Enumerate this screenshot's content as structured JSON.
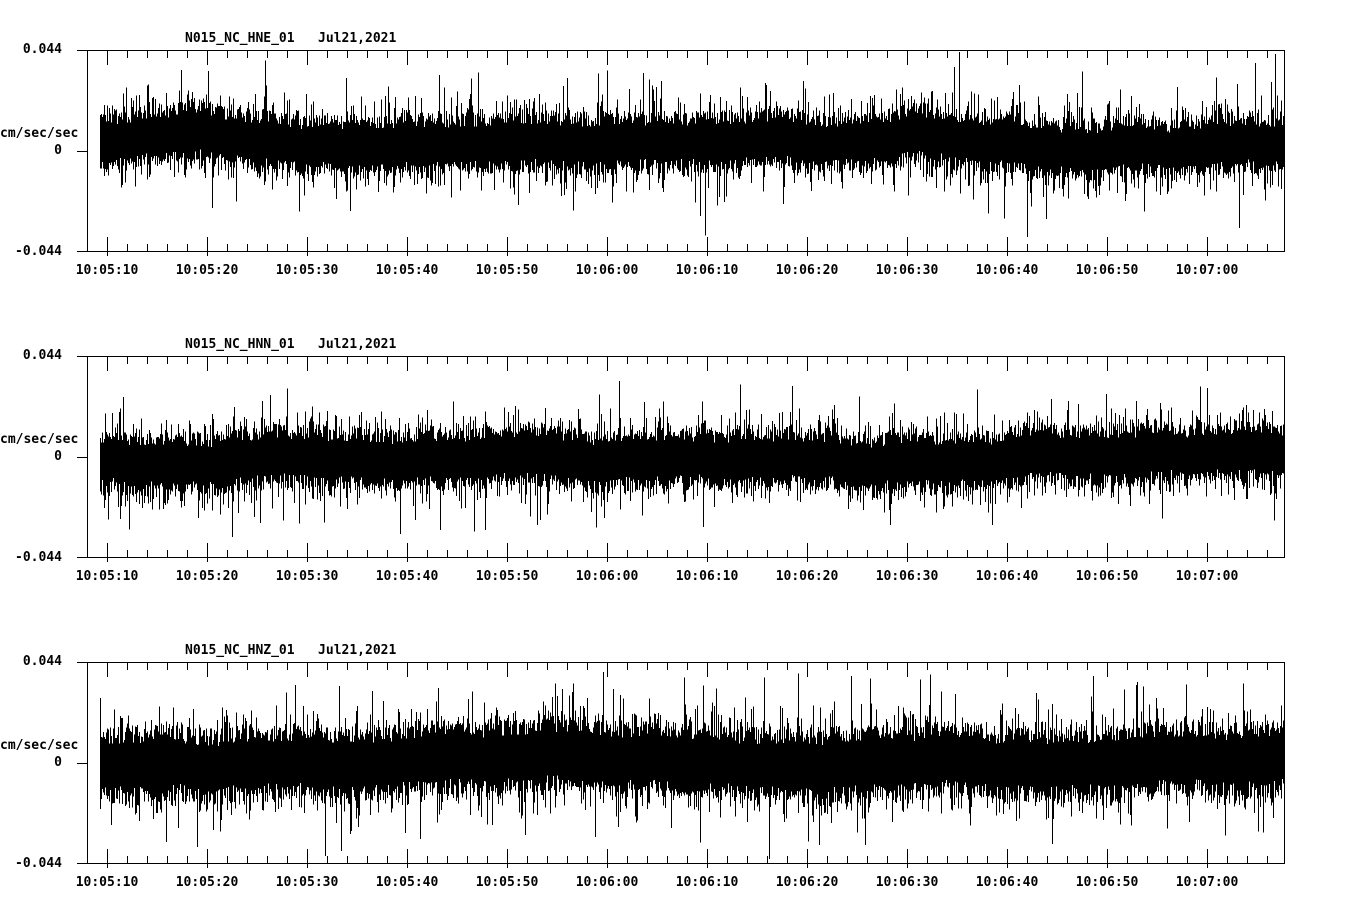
{
  "page": {
    "background_color": "#ffffff",
    "ink_color": "#000000",
    "description": "Three-component strong-motion seismogram display"
  },
  "chart_data": [
    {
      "type": "line",
      "title": "N015_NC_HNE_01   Jul21,2021",
      "station": "N015_NC_HNE_01",
      "date_label": "Jul21,2021",
      "y_axis": {
        "units": "cm/sec/sec",
        "max_label": "0.044",
        "zero_label": "0",
        "min_label": "-0.044",
        "ylim": [
          -0.044,
          0.044
        ],
        "grid": false
      },
      "x_axis": {
        "tick_labels": [
          "10:05:10",
          "10:05:20",
          "10:05:30",
          "10:05:40",
          "10:05:50",
          "10:06:00",
          "10:06:10",
          "10:06:20",
          "10:06:30",
          "10:06:40",
          "10:06:50",
          "10:07:00"
        ],
        "major_tick_seconds": 10,
        "minor_tick_seconds": 2
      },
      "waveform": {
        "description": "stationary broadband acceleration noise spanning full record, peaks near +/-0.040",
        "seed": 11,
        "core_amp": 0.0105,
        "med_spike_amp": 0.01,
        "big_spike_amp": 0.02,
        "bias": 0.004
      }
    },
    {
      "type": "line",
      "title": "N015_NC_HNN_01   Jul21,2021",
      "station": "N015_NC_HNN_01",
      "date_label": "Jul21,2021",
      "y_axis": {
        "units": "cm/sec/sec",
        "max_label": "0.044",
        "zero_label": "0",
        "min_label": "-0.044",
        "ylim": [
          -0.044,
          0.044
        ],
        "grid": false
      },
      "x_axis": {
        "tick_labels": [
          "10:05:10",
          "10:05:20",
          "10:05:30",
          "10:05:40",
          "10:05:50",
          "10:06:00",
          "10:06:10",
          "10:06:20",
          "10:06:30",
          "10:06:40",
          "10:06:50",
          "10:07:00"
        ],
        "major_tick_seconds": 10,
        "minor_tick_seconds": 2
      },
      "waveform": {
        "description": "stationary broadband acceleration noise spanning full record, peaks near +/-0.037",
        "seed": 22,
        "core_amp": 0.0108,
        "med_spike_amp": 0.009,
        "big_spike_amp": 0.017,
        "bias": -0.0015
      }
    },
    {
      "type": "line",
      "title": "N015_NC_HNZ_01   Jul21,2021",
      "station": "N015_NC_HNZ_01",
      "date_label": "Jul21,2021",
      "y_axis": {
        "units": "cm/sec/sec",
        "max_label": "0.044",
        "zero_label": "0",
        "min_label": "-0.044",
        "ylim": [
          -0.044,
          0.044
        ],
        "grid": false
      },
      "x_axis": {
        "tick_labels": [
          "10:05:10",
          "10:05:20",
          "10:05:30",
          "10:05:40",
          "10:05:50",
          "10:06:00",
          "10:06:10",
          "10:06:20",
          "10:06:30",
          "10:06:40",
          "10:06:50",
          "10:07:00"
        ],
        "major_tick_seconds": 10,
        "minor_tick_seconds": 2
      },
      "waveform": {
        "description": "stationary broadband acceleration noise spanning full record, peaks near +/-0.040",
        "seed": 33,
        "core_amp": 0.013,
        "med_spike_amp": 0.01,
        "big_spike_amp": 0.021,
        "bias": 0.0008
      }
    }
  ]
}
